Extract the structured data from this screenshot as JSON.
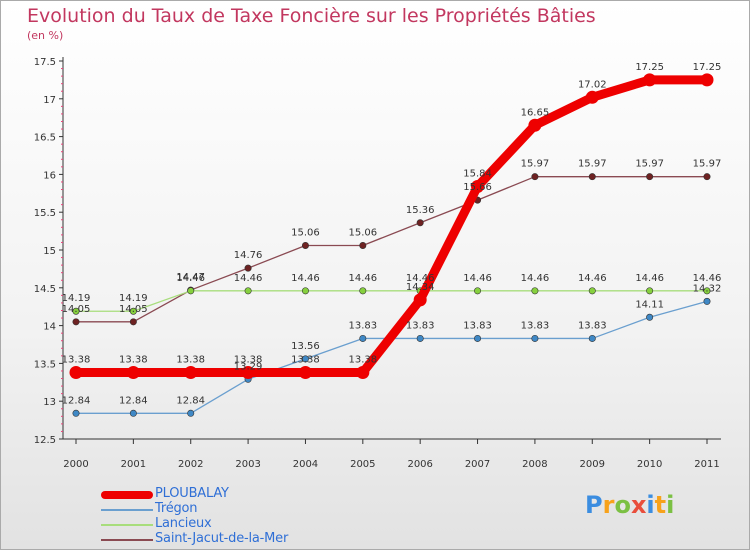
{
  "title": "Evolution du Taux de Taxe Foncière sur les Propriétés Bâties",
  "subtitle": "(en %)",
  "brand": {
    "letters": [
      "P",
      "r",
      "o",
      "x",
      "i",
      "t",
      "i"
    ],
    "colors": [
      "#3b8de0",
      "#f7a21b",
      "#7bc043",
      "#e94e3c",
      "#3b8de0",
      "#f7a21b",
      "#7bc043"
    ]
  },
  "colors": {
    "title": "#c2375f",
    "axis": "#333333",
    "tick_marks": "#e8447a"
  },
  "chart_data": {
    "type": "line",
    "title": "Evolution du Taux de Taxe Foncière sur les Propriétés Bâties",
    "ylabel": "(en %)",
    "xlabel": "",
    "categories": [
      "2000",
      "2001",
      "2002",
      "2003",
      "2004",
      "2005",
      "2006",
      "2007",
      "2008",
      "2009",
      "2010",
      "2011"
    ],
    "y_ticks": [
      "12.5",
      "13",
      "13.5",
      "14",
      "14.5",
      "15",
      "15.5",
      "16",
      "16.5",
      "17",
      "17.5"
    ],
    "ylim": [
      12.5,
      17.5
    ],
    "grid": false,
    "legend_position": "bottom-left",
    "series": [
      {
        "name": "PLOUBALAY",
        "color": "#ee0000",
        "marker": "#ee0000",
        "width": "thick",
        "values": [
          13.38,
          13.38,
          13.38,
          13.38,
          13.38,
          13.38,
          14.34,
          15.84,
          16.65,
          17.02,
          17.25,
          17.25
        ],
        "labels": [
          "13.38",
          "13.38",
          "13.38",
          "13.38",
          "13.38",
          "13.38",
          "14.34",
          "15.84",
          "16.65",
          "17.02",
          "17.25",
          "17.25"
        ]
      },
      {
        "name": "Trégon",
        "color": "#6a9fcf",
        "marker": "#3f88c5",
        "width": "thin",
        "values": [
          12.84,
          12.84,
          12.84,
          13.29,
          13.56,
          13.83,
          13.83,
          13.83,
          13.83,
          13.83,
          14.11,
          14.32
        ],
        "labels": [
          "12.84",
          "12.84",
          "12.84",
          "13.29",
          "13.56",
          "13.83",
          "13.83",
          "13.83",
          "13.83",
          "13.83",
          "14.11",
          "14.32"
        ]
      },
      {
        "name": "Lancieux",
        "color": "#a8dd7c",
        "marker": "#86d03e",
        "width": "thin",
        "values": [
          14.19,
          14.19,
          14.46,
          14.46,
          14.46,
          14.46,
          14.46,
          14.46,
          14.46,
          14.46,
          14.46,
          14.46
        ],
        "labels": [
          "14.19",
          "14.19",
          "14.46",
          "14.46",
          "14.46",
          "14.46",
          "14.46",
          "14.46",
          "14.46",
          "14.46",
          "14.46",
          "14.46"
        ]
      },
      {
        "name": "Saint-Jacut-de-la-Mer",
        "color": "#8a4a52",
        "marker": "#6e2222",
        "width": "thin",
        "values": [
          14.05,
          14.05,
          14.47,
          14.76,
          15.06,
          15.06,
          15.36,
          15.66,
          15.97,
          15.97,
          15.97,
          15.97
        ],
        "labels": [
          "14.05",
          "14.05",
          "14.47",
          "14.76",
          "15.06",
          "15.06",
          "15.36",
          "15.66",
          "15.97",
          "15.97",
          "15.97",
          "15.97"
        ]
      }
    ]
  }
}
